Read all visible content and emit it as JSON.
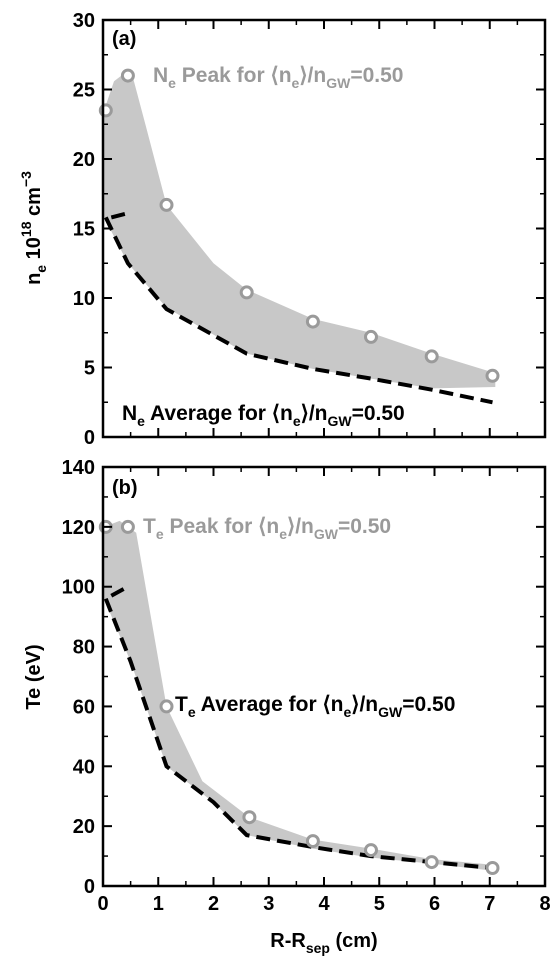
{
  "chart_data": [
    {
      "panel_label": "(a)",
      "type": "line",
      "ylabel_main": "n",
      "ylabel_sub": "e",
      "ylabel_rest": " 10",
      "ylabel_sup1": "18",
      "ylabel_unit": " cm",
      "ylabel_sup2": "−3",
      "xlim": [
        0,
        8
      ],
      "ylim": [
        0,
        30
      ],
      "xticks": [
        0,
        1,
        2,
        3,
        4,
        5,
        6,
        7,
        8
      ],
      "yticks": [
        0,
        5,
        10,
        15,
        20,
        25,
        30
      ],
      "series": [
        {
          "name": "Ne Peak for ⟨ne⟩/nGW=0.50",
          "style": "circles",
          "color": "#9a9a9a",
          "x": [
            0.05,
            0.45,
            1.15,
            2.6,
            3.8,
            4.85,
            5.95,
            7.05
          ],
          "y": [
            23.5,
            26.0,
            16.7,
            10.4,
            8.3,
            7.2,
            5.8,
            4.4
          ]
        },
        {
          "name": "Ne Average for ⟨ne⟩/nGW=0.50",
          "style": "dashed",
          "color": "#000000",
          "x": [
            0.05,
            0.45,
            1.15,
            2.6,
            3.8,
            4.85,
            5.95,
            7.05
          ],
          "y": [
            15.8,
            12.5,
            9.2,
            6.0,
            4.9,
            4.2,
            3.4,
            2.5
          ]
        },
        {
          "name": "dashed stub",
          "style": "dashed-short",
          "color": "#000000",
          "x": [
            0.15,
            0.45
          ],
          "y": [
            15.8,
            16.1
          ]
        }
      ],
      "band": {
        "color": "#c8c8c8",
        "upper_x": [
          0.02,
          0.2,
          0.5,
          0.8,
          1.15,
          2.0,
          2.6,
          3.8,
          4.85,
          5.95,
          7.1
        ],
        "upper_y": [
          23.5,
          25.6,
          26.5,
          22.0,
          16.7,
          12.5,
          10.6,
          8.5,
          7.5,
          6.0,
          4.6
        ],
        "lower_x": [
          7.1,
          5.95,
          4.85,
          3.8,
          2.6,
          1.15,
          0.45,
          0.02
        ],
        "lower_y": [
          3.6,
          3.5,
          4.2,
          4.9,
          6.0,
          9.3,
          12.5,
          15.8
        ]
      },
      "annotations": {
        "peak": {
          "color": "#9a9a9a",
          "part1": "N",
          "part1_sub": "e",
          "part2": " Peak for ",
          "part3": "⟨n",
          "part3_sub": "e",
          "part4": "⟩/n",
          "part4_sub": "GW",
          "part5": "=0.50"
        },
        "average": {
          "color": "#000000",
          "part1": "N",
          "part1_sub": "e",
          "part2": " Average for ",
          "part3": "⟨n",
          "part3_sub": "e",
          "part4": "⟩/n",
          "part4_sub": "GW",
          "part5": "=0.50"
        }
      }
    },
    {
      "panel_label": "(b)",
      "type": "line",
      "ylabel": "Te (eV)",
      "xlabel_main": "R-R",
      "xlabel_sub": "sep",
      "xlabel_unit": " (cm)",
      "xlim": [
        0,
        8
      ],
      "ylim": [
        0,
        140
      ],
      "xticks": [
        0,
        1,
        2,
        3,
        4,
        5,
        6,
        7,
        8
      ],
      "yticks": [
        0,
        20,
        40,
        60,
        80,
        100,
        120,
        140
      ],
      "series": [
        {
          "name": "Te Peak for ⟨ne⟩/nGW=0.50",
          "style": "circles",
          "color": "#9a9a9a",
          "x": [
            0.05,
            0.45,
            1.15,
            2.65,
            3.8,
            4.85,
            5.95,
            7.05
          ],
          "y": [
            120,
            120,
            60,
            23,
            15,
            12,
            8,
            6
          ]
        },
        {
          "name": "Te Average for ⟨ne⟩/nGW=0.50",
          "style": "dashed",
          "color": "#000000",
          "x": [
            0.05,
            0.5,
            1.15,
            2.0,
            2.6,
            3.8,
            4.85,
            5.95,
            7.05
          ],
          "y": [
            96,
            75,
            40,
            28,
            17,
            13,
            10,
            8,
            6
          ]
        },
        {
          "name": "dashed stub",
          "style": "dashed-short",
          "color": "#000000",
          "x": [
            0.15,
            0.45
          ],
          "y": [
            97,
            100
          ]
        }
      ],
      "band": {
        "color": "#c8c8c8",
        "upper_x": [
          0.02,
          0.3,
          0.6,
          1.15,
          1.8,
          2.65,
          3.8,
          4.85,
          5.95,
          7.1
        ],
        "upper_y": [
          120,
          122,
          118,
          60,
          35,
          23,
          15.5,
          12.5,
          9,
          7
        ],
        "lower_x": [
          7.1,
          5.95,
          4.85,
          3.8,
          2.6,
          2.0,
          1.15,
          0.5,
          0.02
        ],
        "lower_y": [
          5,
          7.5,
          9.5,
          12.5,
          17,
          28,
          40,
          75,
          96
        ]
      },
      "annotations": {
        "peak": {
          "color": "#9a9a9a",
          "part1": "T",
          "part1_sub": "e",
          "part2": " Peak for ",
          "part3": "⟨n",
          "part3_sub": "e",
          "part4": "⟩/n",
          "part4_sub": "GW",
          "part5": "=0.50"
        },
        "average": {
          "color": "#000000",
          "part1": "T",
          "part1_sub": "e",
          "part2": " Average for ",
          "part3": "⟨n",
          "part3_sub": "e",
          "part4": "⟩/n",
          "part4_sub": "GW",
          "part5": "=0.50"
        }
      }
    }
  ]
}
